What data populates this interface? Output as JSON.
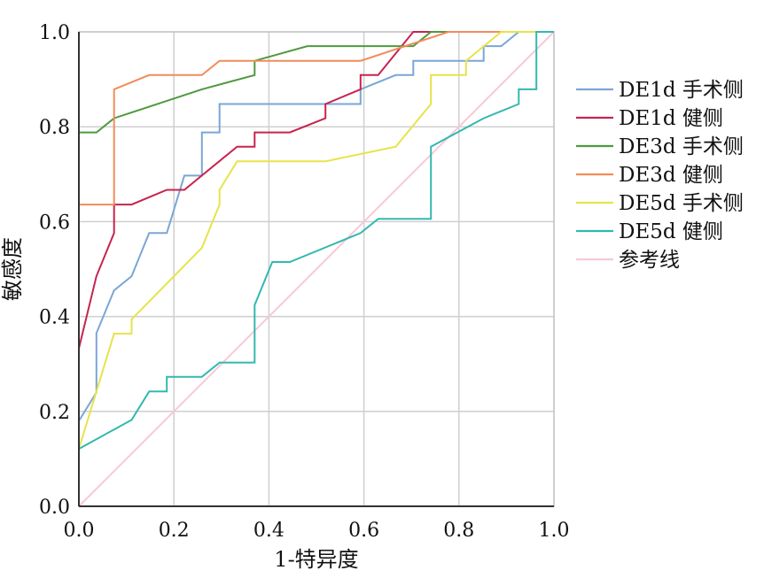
{
  "chart_data": {
    "type": "line",
    "xlabel": "1-特异度",
    "ylabel": "敏感度",
    "xlim": [
      0,
      1
    ],
    "ylim": [
      0,
      1
    ],
    "xticks": [
      "0.0",
      "0.2",
      "0.4",
      "0.6",
      "0.8",
      "1.0"
    ],
    "yticks": [
      "0.0",
      "0.2",
      "0.4",
      "0.6",
      "0.8",
      "1.0"
    ],
    "grid": true,
    "legend_position": "right",
    "series": [
      {
        "name": "DE1d 手术侧",
        "color": "#7aa6d6",
        "points": [
          [
            0,
            0
          ],
          [
            0,
            0.18
          ],
          [
            0.037,
            0.24
          ],
          [
            0.037,
            0.365
          ],
          [
            0.074,
            0.455
          ],
          [
            0.111,
            0.485
          ],
          [
            0.148,
            0.576
          ],
          [
            0.185,
            0.576
          ],
          [
            0.222,
            0.697
          ],
          [
            0.259,
            0.697
          ],
          [
            0.259,
            0.788
          ],
          [
            0.296,
            0.788
          ],
          [
            0.296,
            0.848
          ],
          [
            0.593,
            0.848
          ],
          [
            0.593,
            0.879
          ],
          [
            0.667,
            0.909
          ],
          [
            0.704,
            0.909
          ],
          [
            0.704,
            0.939
          ],
          [
            0.852,
            0.939
          ],
          [
            0.852,
            0.97
          ],
          [
            0.889,
            0.97
          ],
          [
            0.926,
            1
          ],
          [
            1,
            1
          ]
        ]
      },
      {
        "name": "DE1d 健侧",
        "color": "#c8234f",
        "points": [
          [
            0,
            0
          ],
          [
            0,
            0.333
          ],
          [
            0.037,
            0.485
          ],
          [
            0.074,
            0.576
          ],
          [
            0.074,
            0.636
          ],
          [
            0.111,
            0.636
          ],
          [
            0.185,
            0.667
          ],
          [
            0.222,
            0.667
          ],
          [
            0.333,
            0.758
          ],
          [
            0.37,
            0.758
          ],
          [
            0.37,
            0.788
          ],
          [
            0.444,
            0.788
          ],
          [
            0.519,
            0.818
          ],
          [
            0.519,
            0.848
          ],
          [
            0.593,
            0.879
          ],
          [
            0.593,
            0.909
          ],
          [
            0.63,
            0.909
          ],
          [
            0.704,
            1
          ],
          [
            1,
            1
          ]
        ]
      },
      {
        "name": "DE3d 手术侧",
        "color": "#4e9a3e",
        "points": [
          [
            0,
            0
          ],
          [
            0,
            0.788
          ],
          [
            0.037,
            0.788
          ],
          [
            0.074,
            0.818
          ],
          [
            0.259,
            0.879
          ],
          [
            0.37,
            0.909
          ],
          [
            0.37,
            0.939
          ],
          [
            0.481,
            0.97
          ],
          [
            0.704,
            0.97
          ],
          [
            0.741,
            1
          ],
          [
            1,
            1
          ]
        ]
      },
      {
        "name": "DE3d 健侧",
        "color": "#f28c5a",
        "points": [
          [
            0,
            0
          ],
          [
            0,
            0.636
          ],
          [
            0.074,
            0.636
          ],
          [
            0.074,
            0.879
          ],
          [
            0.148,
            0.909
          ],
          [
            0.259,
            0.909
          ],
          [
            0.296,
            0.939
          ],
          [
            0.593,
            0.939
          ],
          [
            0.778,
            1
          ],
          [
            1,
            1
          ]
        ]
      },
      {
        "name": "DE5d 手术侧",
        "color": "#e7e34a",
        "points": [
          [
            0,
            0
          ],
          [
            0,
            0.121
          ],
          [
            0.074,
            0.364
          ],
          [
            0.111,
            0.364
          ],
          [
            0.111,
            0.394
          ],
          [
            0.259,
            0.545
          ],
          [
            0.296,
            0.636
          ],
          [
            0.296,
            0.667
          ],
          [
            0.333,
            0.727
          ],
          [
            0.519,
            0.727
          ],
          [
            0.667,
            0.758
          ],
          [
            0.741,
            0.848
          ],
          [
            0.741,
            0.909
          ],
          [
            0.815,
            0.909
          ],
          [
            0.815,
            0.939
          ],
          [
            0.889,
            1
          ],
          [
            1,
            1
          ]
        ]
      },
      {
        "name": "DE5d 健侧",
        "color": "#33b8b0",
        "points": [
          [
            0,
            0
          ],
          [
            0,
            0.121
          ],
          [
            0.111,
            0.182
          ],
          [
            0.148,
            0.242
          ],
          [
            0.185,
            0.242
          ],
          [
            0.185,
            0.273
          ],
          [
            0.259,
            0.273
          ],
          [
            0.296,
            0.303
          ],
          [
            0.37,
            0.303
          ],
          [
            0.37,
            0.424
          ],
          [
            0.407,
            0.515
          ],
          [
            0.444,
            0.515
          ],
          [
            0.593,
            0.576
          ],
          [
            0.63,
            0.606
          ],
          [
            0.741,
            0.606
          ],
          [
            0.741,
            0.758
          ],
          [
            0.852,
            0.818
          ],
          [
            0.926,
            0.848
          ],
          [
            0.926,
            0.879
          ],
          [
            0.963,
            0.879
          ],
          [
            0.963,
            1
          ],
          [
            1,
            1
          ]
        ]
      },
      {
        "name": "参考线",
        "color": "#f6c9d6",
        "points": [
          [
            0,
            0
          ],
          [
            1,
            1
          ]
        ]
      }
    ]
  }
}
